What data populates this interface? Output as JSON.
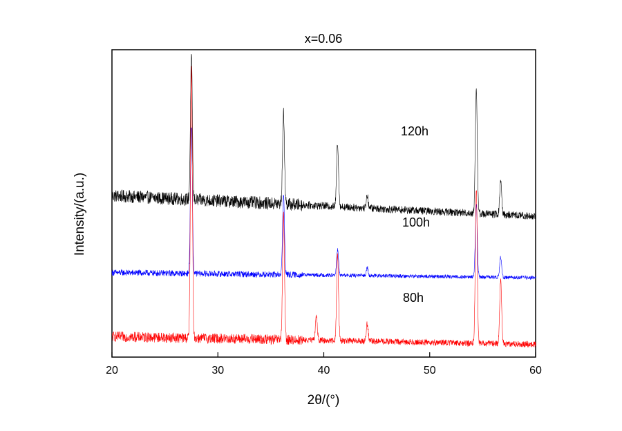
{
  "chart_data": {
    "type": "line",
    "title": "x=0.06",
    "xlabel": "2θ/(°)",
    "ylabel": "Intensity/(a.u.)",
    "xlim": [
      20,
      60
    ],
    "xticks": [
      "20",
      "30",
      "40",
      "50",
      "60"
    ],
    "yticks_shown": false,
    "grid": false,
    "legend": "none",
    "peaks_2theta": [
      27.5,
      36.2,
      39.3,
      41.3,
      44.1,
      54.4,
      56.7
    ],
    "series": [
      {
        "name": "120h",
        "color": "#000000",
        "baseline": 6.0,
        "noise": 0.25,
        "x": [
          20,
          25,
          27.5,
          30,
          35,
          36.2,
          38,
          39.3,
          41.3,
          44.1,
          50,
          54.4,
          56.7,
          60
        ],
        "values": [
          6.3,
          6.2,
          11.7,
          6.0,
          6.0,
          9.5,
          5.7,
          6.1,
          8.4,
          6.3,
          5.6,
          10.5,
          6.9,
          5.5
        ]
      },
      {
        "name": "100h",
        "color": "#0000ff",
        "baseline": 3.3,
        "noise": 0.12,
        "x": [
          20,
          27.5,
          30,
          36.2,
          39.3,
          41.3,
          44.1,
          50,
          54.4,
          56.7,
          60
        ],
        "values": [
          3.3,
          9.0,
          3.3,
          6.3,
          3.4,
          4.2,
          3.5,
          3.2,
          6.0,
          3.9,
          3.1
        ]
      },
      {
        "name": "80h",
        "color": "#ff0000",
        "baseline": 0.5,
        "noise": 0.2,
        "x": [
          20,
          25,
          27.5,
          30,
          36.2,
          39.3,
          41.3,
          44.1,
          50,
          54.4,
          56.7,
          60
        ],
        "values": [
          0.8,
          0.8,
          11.2,
          0.6,
          5.5,
          1.6,
          4.0,
          1.3,
          0.5,
          6.6,
          3.0,
          0.5
        ]
      }
    ]
  }
}
